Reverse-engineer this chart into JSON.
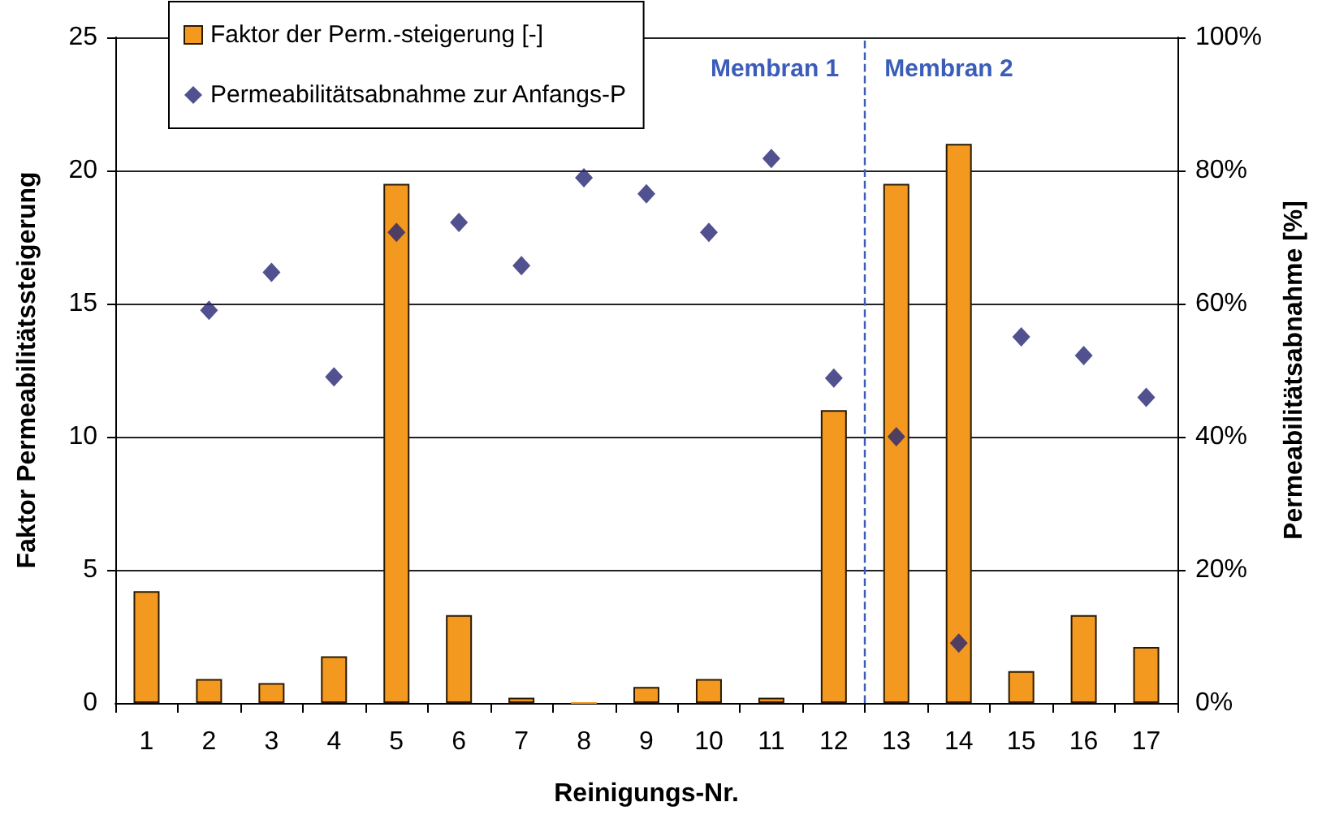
{
  "chart_data": {
    "type": "bar",
    "xlabel": "Reinigungs-Nr.",
    "ylabel": "Faktor Permeabilitätssteigerung",
    "y2label": "Permeabilitätsabnahme [%]",
    "annotations": [
      "Membran 1",
      "Membran 2"
    ],
    "x": [
      1,
      2,
      3,
      4,
      5,
      6,
      7,
      8,
      9,
      10,
      11,
      12,
      13,
      14,
      15,
      16,
      17
    ],
    "xlim": [
      0.5,
      17.5
    ],
    "xticks": [
      {
        "value": 0.5,
        "label": null
      },
      1,
      {
        "value": 1.5,
        "label": null
      },
      2,
      {
        "value": 2.5,
        "label": null
      },
      3,
      {
        "value": 3.5,
        "label": null
      },
      4,
      {
        "value": 4.5,
        "label": null
      },
      5,
      {
        "value": 5.5,
        "label": null
      },
      6,
      {
        "value": 6.5,
        "label": null
      },
      7,
      {
        "value": 7.5,
        "label": null
      },
      8,
      {
        "value": 8.5,
        "label": null
      },
      9,
      {
        "value": 9.5,
        "label": null
      },
      10,
      {
        "value": 10.5,
        "label": null
      },
      11,
      {
        "value": 11.5,
        "label": null
      },
      12,
      {
        "value": 12.5,
        "label": null
      },
      13,
      {
        "value": 13.5,
        "label": null
      },
      14,
      {
        "value": 14.5,
        "label": null
      },
      15,
      {
        "value": 15.5,
        "label": null
      },
      16,
      {
        "value": 16.5,
        "label": null
      },
      17,
      {
        "value": 17.5,
        "label": null
      }
    ],
    "series": [
      {
        "name": "Faktor der Perm.-steigerung [-]",
        "color": "#f4991f",
        "values": [
          4.2,
          0.9,
          0.75,
          1.75,
          19.5,
          3.3,
          0.2,
          0,
          0.6,
          0.9,
          0.2,
          11,
          19.5,
          21,
          1.2,
          3.3,
          2.1
        ]
      },
      {
        "name": "Permeabilitätsabnahme zur Anfangs-P",
        "type": "scatter",
        "axis": "y2",
        "color": "#262673",
        "values": [
          null,
          59,
          64.7,
          49,
          70.7,
          72.2,
          65.7,
          78.9,
          76.5,
          70.7,
          81.8,
          48.8,
          40,
          9,
          55,
          52.2,
          45.9
        ]
      }
    ],
    "ylim": [
      0,
      25
    ],
    "yticks": [
      0,
      5,
      10,
      15,
      20,
      25
    ],
    "y2lim": [
      0,
      100
    ],
    "y2ticks": [
      {
        "value": 0,
        "label": "0%"
      },
      {
        "value": 20,
        "label": "20%"
      },
      {
        "value": 40,
        "label": "40%"
      },
      {
        "value": 60,
        "label": "60%"
      },
      {
        "value": 80,
        "label": "80%"
      },
      {
        "value": 100,
        "label": "100%"
      }
    ],
    "ref_lines": [
      {
        "axis": "x",
        "value": 12.5,
        "color": "#3b5cb8",
        "line_style": "dashed"
      }
    ],
    "grid": "y",
    "legend": "top left",
    "marker": "diamond"
  }
}
